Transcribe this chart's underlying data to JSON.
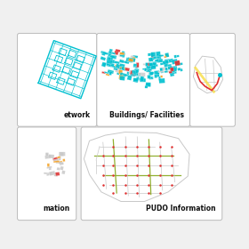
{
  "background": "#f0f0f0",
  "panel_bg": "#ffffff",
  "panel_border": "#bbbbbb",
  "cyan": "#00c0d0",
  "red": "#e03030",
  "orange": "#f5a020",
  "yellow": "#f5e020",
  "gray_light": "#c8c8c8",
  "gray_medium": "#aaaaaa",
  "gray_dark": "#888888",
  "olive": "#90b030",
  "panel0_label": "etwork",
  "panel1_label": "Buildings/ Facilities",
  "panel3_label": "mation",
  "panel4_label": "PUDO Information",
  "label_fontsize": 5.5,
  "label_fontsize_bold": true
}
